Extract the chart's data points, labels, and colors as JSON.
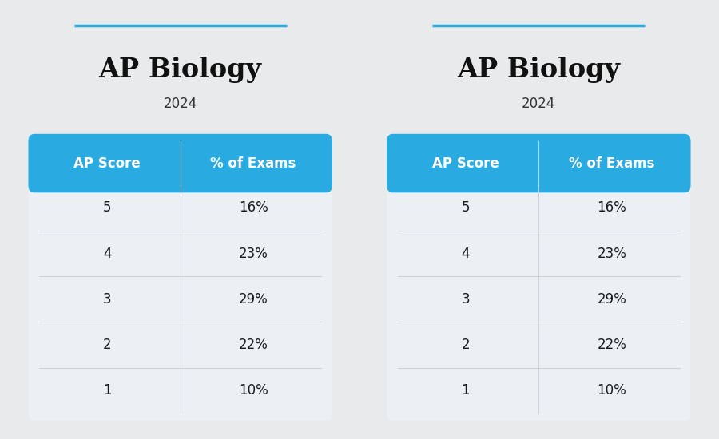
{
  "title": "AP Biology",
  "subtitle": "2024",
  "scores": [
    "5",
    "4",
    "3",
    "2",
    "1"
  ],
  "percentages": [
    "16%",
    "23%",
    "29%",
    "22%",
    "10%"
  ],
  "col_headers": [
    "AP Score",
    "% of Exams"
  ],
  "header_bg_color": "#29ABE2",
  "header_text_color": "#FFFFFF",
  "row_bg_color": "#EBF0F5",
  "row_text_color": "#1a1a1a",
  "title_color": "#111111",
  "subtitle_color": "#333333",
  "accent_line_color": "#29ABE2",
  "bg_color": "#E8EAEC",
  "divider_color": "#C8D0DA",
  "title_fontsize": 24,
  "subtitle_fontsize": 12,
  "header_fontsize": 12,
  "data_fontsize": 12
}
